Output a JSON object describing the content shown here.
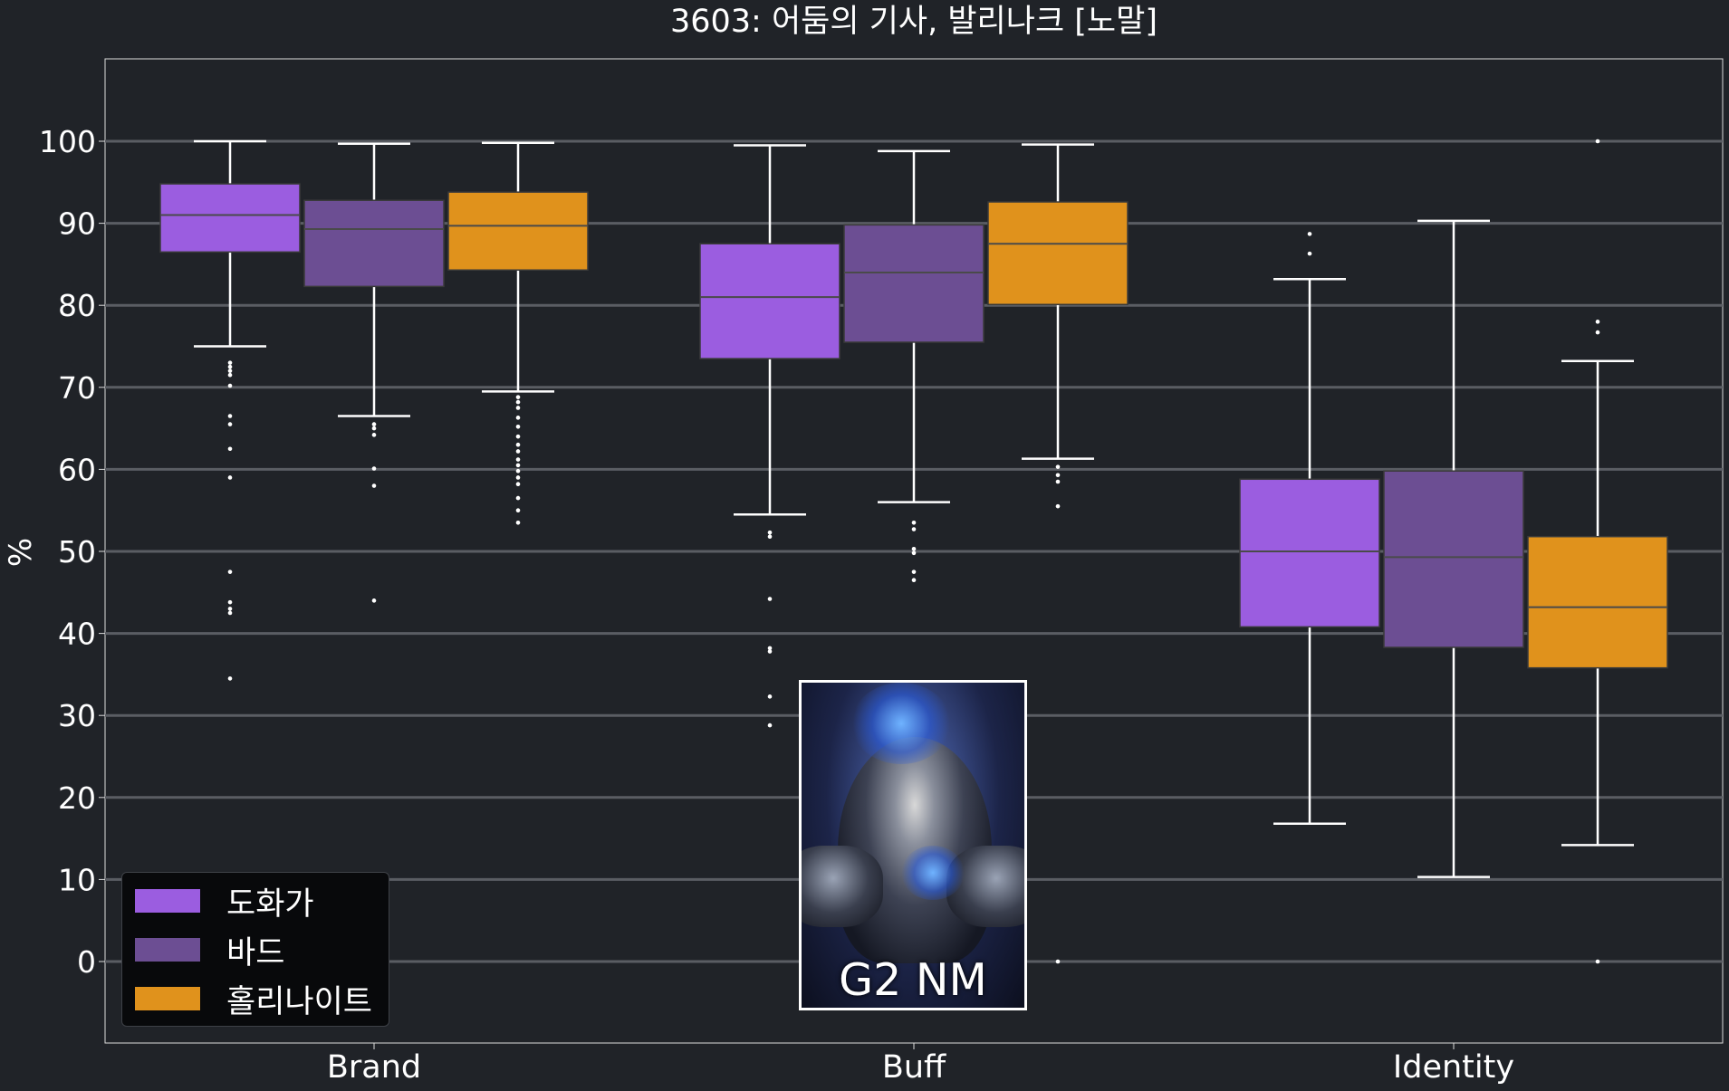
{
  "chart_data": {
    "type": "box",
    "title": "3603: 어둠의 기사, 발리나크 [노말]",
    "xlabel": "",
    "ylabel": "%",
    "ylim": [
      -10,
      110
    ],
    "yticks": [
      0,
      10,
      20,
      30,
      40,
      50,
      60,
      70,
      80,
      90,
      100
    ],
    "grid": true,
    "legend_position": "lower-left",
    "categories": [
      "Brand",
      "Buff",
      "Identity"
    ],
    "series": [
      {
        "name": "도화가",
        "color": "#9b5de0",
        "boxes": [
          {
            "whisker_low": 75.0,
            "q1": 86.5,
            "median": 91.0,
            "q3": 94.8,
            "whisker_high": 100.0,
            "outliers": [
              73.0,
              72.5,
              72.0,
              71.5,
              70.2,
              66.5,
              65.5,
              62.5,
              59.0,
              47.5,
              43.8,
              43.0,
              42.5,
              34.5
            ]
          },
          {
            "whisker_low": 54.5,
            "q1": 73.5,
            "median": 81.0,
            "q3": 87.5,
            "whisker_high": 99.5,
            "outliers": [
              52.3,
              51.8,
              44.2,
              38.2,
              37.8,
              32.3,
              28.8
            ]
          },
          {
            "whisker_low": 16.8,
            "q1": 40.8,
            "median": 50.0,
            "q3": 58.8,
            "whisker_high": 83.2,
            "outliers": [
              88.7,
              86.3
            ]
          }
        ]
      },
      {
        "name": "바드",
        "color": "#6c4e93",
        "boxes": [
          {
            "whisker_low": 66.5,
            "q1": 82.3,
            "median": 89.3,
            "q3": 92.8,
            "whisker_high": 99.7,
            "outliers": [
              65.5,
              65.0,
              64.2,
              60.1,
              58.0,
              44.0
            ]
          },
          {
            "whisker_low": 56.0,
            "q1": 75.5,
            "median": 84.0,
            "q3": 89.8,
            "whisker_high": 98.8,
            "outliers": [
              53.5,
              52.7,
              50.3,
              49.8,
              47.5,
              46.5
            ]
          },
          {
            "whisker_low": 10.3,
            "q1": 38.3,
            "median": 49.3,
            "q3": 59.8,
            "whisker_high": 90.3,
            "outliers": []
          }
        ]
      },
      {
        "name": "홀리나이트",
        "color": "#e0921c",
        "boxes": [
          {
            "whisker_low": 69.5,
            "q1": 84.3,
            "median": 89.7,
            "q3": 93.8,
            "whisker_high": 99.8,
            "outliers": [
              68.8,
              68.2,
              67.5,
              66.3,
              65.2,
              64.0,
              63.0,
              62.2,
              61.2,
              60.5,
              59.8,
              59.0,
              58.2,
              56.5,
              55.0,
              53.5
            ]
          },
          {
            "whisker_low": 61.3,
            "q1": 80.1,
            "median": 87.5,
            "q3": 92.6,
            "whisker_high": 99.6,
            "outliers": [
              60.3,
              59.3,
              58.5,
              55.5,
              0.0
            ]
          },
          {
            "whisker_low": 14.2,
            "q1": 35.8,
            "median": 43.2,
            "q3": 51.8,
            "whisker_high": 73.2,
            "outliers": [
              100.0,
              78.0,
              76.7,
              0.0
            ]
          }
        ]
      }
    ]
  },
  "card": {
    "label": "G2 NM",
    "icon": "boss-portrait"
  },
  "colors": {
    "background": "#202328",
    "grid": "#5a5d63",
    "whisker": "#ffffff",
    "median": "#4a4a4a",
    "legend_bg": "#08090b"
  }
}
